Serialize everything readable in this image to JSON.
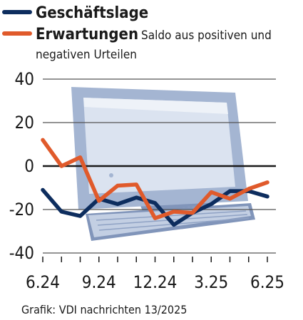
{
  "legend": {
    "series1_label": "Geschäftslage",
    "series2_label": "Erwartungen",
    "series2_note_line1": "Saldo aus positiven und",
    "series2_note_line2": "negativen Urteilen"
  },
  "credit": "Grafik: VDI nachrichten 13/2025",
  "colors": {
    "geschaeftslage": "#0d2d5e",
    "erwartungen": "#e05a2b",
    "zero_line": "#1a1a1a",
    "grid": "#555555",
    "illustration_frame": "#9fb1cf",
    "illustration_screen": "#d4ddec",
    "illustration_dark": "#8195ba"
  },
  "illustration": {
    "name": "computer-monitor-with-keyboard"
  },
  "chart_data": {
    "type": "line",
    "x": [
      "6.24",
      "7.24",
      "8.24",
      "9.24",
      "10.24",
      "11.24",
      "12.24",
      "1.25",
      "2.25",
      "3.25",
      "4.25",
      "5.25",
      "6.25"
    ],
    "xticks": [
      "6.24",
      "9.24",
      "12.24",
      "3.25",
      "6.25"
    ],
    "yticks": [
      40,
      20,
      0,
      -20,
      -40
    ],
    "ylim": [
      -40,
      40
    ],
    "grid": true,
    "legend_position": "top-left",
    "series": [
      {
        "name": "Geschäftslage",
        "color": "#0d2d5e",
        "values": [
          -11,
          -21,
          -23,
          -15,
          -17.5,
          -14.5,
          -17,
          -27,
          -21.5,
          -17.5,
          -11.5,
          -11.5,
          -14
        ]
      },
      {
        "name": "Erwartungen",
        "color": "#e05a2b",
        "values": [
          12,
          0,
          4,
          -16,
          -9,
          -8.5,
          -24,
          -21,
          -21.5,
          -12,
          -15,
          -10.5,
          -7.5
        ]
      }
    ]
  }
}
